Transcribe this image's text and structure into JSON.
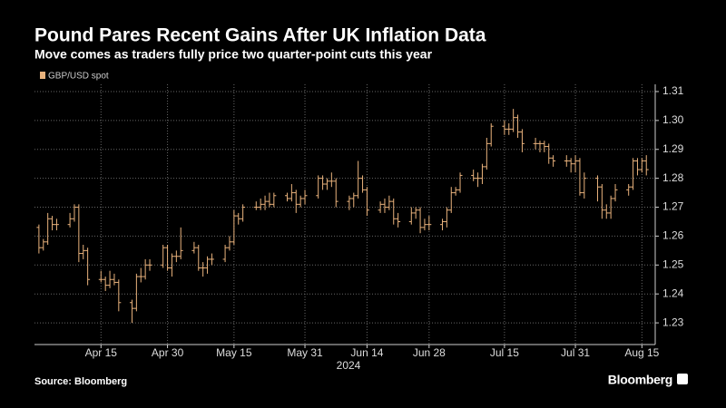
{
  "chart_data": {
    "type": "ohlc",
    "title": "Pound Pares Recent Gains After UK Inflation Data",
    "subtitle": "Move comes as traders fully price two quarter-point cuts this year",
    "source": "Source: Bloomberg",
    "brand": "Bloomberg",
    "xlabel": "2024",
    "grid": true,
    "xlim": [
      "2024-03-31",
      "2024-08-18"
    ],
    "xticks": [
      {
        "value": "2024-04-15",
        "label": "Apr 15"
      },
      {
        "value": "2024-04-30",
        "label": "Apr 30"
      },
      {
        "value": "2024-05-15",
        "label": "May 15"
      },
      {
        "value": "2024-05-31",
        "label": "May 31"
      },
      {
        "value": "2024-06-14",
        "label": "Jun 14"
      },
      {
        "value": "2024-06-28",
        "label": "Jun 28"
      },
      {
        "value": "2024-07-15",
        "label": "Jul 15"
      },
      {
        "value": "2024-07-31",
        "label": "Jul 31"
      },
      {
        "value": "2024-08-15",
        "label": "Aug 15"
      }
    ],
    "ylim": [
      1.2225,
      1.3125
    ],
    "yticks": [
      1.23,
      1.24,
      1.25,
      1.26,
      1.27,
      1.28,
      1.29,
      {
        "value": 1.3,
        "label": "1.30"
      },
      1.31
    ],
    "x": [
      "2024-04-01",
      "2024-04-02",
      "2024-04-03",
      "2024-04-04",
      "2024-04-05",
      "2024-04-08",
      "2024-04-09",
      "2024-04-10",
      "2024-04-11",
      "2024-04-12",
      "2024-04-15",
      "2024-04-16",
      "2024-04-17",
      "2024-04-18",
      "2024-04-19",
      "2024-04-22",
      "2024-04-23",
      "2024-04-24",
      "2024-04-25",
      "2024-04-26",
      "2024-04-29",
      "2024-04-30",
      "2024-05-01",
      "2024-05-02",
      "2024-05-03",
      "2024-05-06",
      "2024-05-07",
      "2024-05-08",
      "2024-05-09",
      "2024-05-10",
      "2024-05-13",
      "2024-05-14",
      "2024-05-15",
      "2024-05-16",
      "2024-05-17",
      "2024-05-20",
      "2024-05-21",
      "2024-05-22",
      "2024-05-23",
      "2024-05-24",
      "2024-05-27",
      "2024-05-28",
      "2024-05-29",
      "2024-05-30",
      "2024-05-31",
      "2024-06-03",
      "2024-06-04",
      "2024-06-05",
      "2024-06-06",
      "2024-06-07",
      "2024-06-10",
      "2024-06-11",
      "2024-06-12",
      "2024-06-13",
      "2024-06-14",
      "2024-06-17",
      "2024-06-18",
      "2024-06-19",
      "2024-06-20",
      "2024-06-21",
      "2024-06-24",
      "2024-06-25",
      "2024-06-26",
      "2024-06-27",
      "2024-06-28",
      "2024-07-01",
      "2024-07-02",
      "2024-07-03",
      "2024-07-04",
      "2024-07-05",
      "2024-07-08",
      "2024-07-09",
      "2024-07-10",
      "2024-07-11",
      "2024-07-12",
      "2024-07-15",
      "2024-07-16",
      "2024-07-17",
      "2024-07-18",
      "2024-07-19",
      "2024-07-22",
      "2024-07-23",
      "2024-07-24",
      "2024-07-25",
      "2024-07-26",
      "2024-07-29",
      "2024-07-30",
      "2024-07-31",
      "2024-08-01",
      "2024-08-02",
      "2024-08-05",
      "2024-08-06",
      "2024-08-07",
      "2024-08-08",
      "2024-08-09",
      "2024-08-12",
      "2024-08-13",
      "2024-08-14",
      "2024-08-15",
      "2024-08-16"
    ],
    "series": [
      {
        "name": "GBP/USD spot",
        "color": "#e9b27c",
        "ohlc": [
          [
            1.263,
            1.264,
            1.254,
            1.256
          ],
          [
            1.256,
            1.259,
            1.255,
            1.258
          ],
          [
            1.258,
            1.268,
            1.257,
            1.266
          ],
          [
            1.266,
            1.267,
            1.262,
            1.264
          ],
          [
            1.264,
            1.266,
            1.262,
            1.264
          ],
          [
            1.264,
            1.268,
            1.263,
            1.266
          ],
          [
            1.266,
            1.271,
            1.265,
            1.27
          ],
          [
            1.27,
            1.271,
            1.251,
            1.254
          ],
          [
            1.254,
            1.257,
            1.252,
            1.255
          ],
          [
            1.255,
            1.256,
            1.243,
            1.245
          ],
          [
            1.245,
            1.248,
            1.244,
            1.245
          ],
          [
            1.245,
            1.246,
            1.241,
            1.243
          ],
          [
            1.243,
            1.248,
            1.242,
            1.245
          ],
          [
            1.245,
            1.247,
            1.243,
            1.244
          ],
          [
            1.244,
            1.245,
            1.234,
            1.237
          ],
          [
            1.237,
            1.238,
            1.23,
            1.235
          ],
          [
            1.235,
            1.247,
            1.234,
            1.246
          ],
          [
            1.246,
            1.249,
            1.244,
            1.246
          ],
          [
            1.246,
            1.252,
            1.245,
            1.25
          ],
          [
            1.25,
            1.252,
            1.248,
            1.25
          ],
          [
            1.25,
            1.257,
            1.249,
            1.256
          ],
          [
            1.256,
            1.257,
            1.248,
            1.249
          ],
          [
            1.249,
            1.254,
            1.246,
            1.253
          ],
          [
            1.253,
            1.255,
            1.251,
            1.253
          ],
          [
            1.253,
            1.263,
            1.252,
            1.255
          ],
          [
            1.255,
            1.258,
            1.254,
            1.256
          ],
          [
            1.256,
            1.257,
            1.248,
            1.249
          ],
          [
            1.249,
            1.251,
            1.246,
            1.249
          ],
          [
            1.249,
            1.253,
            1.247,
            1.252
          ],
          [
            1.252,
            1.254,
            1.25,
            1.252
          ],
          [
            1.252,
            1.257,
            1.251,
            1.256
          ],
          [
            1.256,
            1.26,
            1.255,
            1.258
          ],
          [
            1.258,
            1.269,
            1.257,
            1.267
          ],
          [
            1.267,
            1.268,
            1.264,
            1.266
          ],
          [
            1.266,
            1.271,
            1.265,
            1.27
          ],
          [
            1.27,
            1.272,
            1.269,
            1.27
          ],
          [
            1.27,
            1.273,
            1.269,
            1.271
          ],
          [
            1.271,
            1.274,
            1.269,
            1.272
          ],
          [
            1.272,
            1.275,
            1.27,
            1.271
          ],
          [
            1.271,
            1.275,
            1.27,
            1.274
          ],
          [
            1.274,
            1.275,
            1.272,
            1.273
          ],
          [
            1.273,
            1.278,
            1.272,
            1.275
          ],
          [
            1.275,
            1.276,
            1.268,
            1.271
          ],
          [
            1.271,
            1.274,
            1.27,
            1.273
          ],
          [
            1.273,
            1.276,
            1.271,
            1.274
          ],
          [
            1.274,
            1.281,
            1.273,
            1.28
          ],
          [
            1.28,
            1.281,
            1.276,
            1.278
          ],
          [
            1.278,
            1.28,
            1.276,
            1.279
          ],
          [
            1.279,
            1.282,
            1.277,
            1.279
          ],
          [
            1.279,
            1.28,
            1.27,
            1.272
          ],
          [
            1.272,
            1.274,
            1.269,
            1.273
          ],
          [
            1.273,
            1.275,
            1.27,
            1.274
          ],
          [
            1.274,
            1.286,
            1.273,
            1.28
          ],
          [
            1.28,
            1.281,
            1.275,
            1.276
          ],
          [
            1.276,
            1.277,
            1.267,
            1.269
          ],
          [
            1.269,
            1.272,
            1.268,
            1.271
          ],
          [
            1.271,
            1.273,
            1.268,
            1.27
          ],
          [
            1.27,
            1.274,
            1.269,
            1.272
          ],
          [
            1.272,
            1.273,
            1.264,
            1.266
          ],
          [
            1.266,
            1.268,
            1.263,
            1.265
          ],
          [
            1.265,
            1.27,
            1.264,
            1.268
          ],
          [
            1.268,
            1.27,
            1.266,
            1.269
          ],
          [
            1.269,
            1.27,
            1.261,
            1.263
          ],
          [
            1.263,
            1.266,
            1.262,
            1.264
          ],
          [
            1.264,
            1.267,
            1.262,
            1.264
          ],
          [
            1.264,
            1.266,
            1.262,
            1.265
          ],
          [
            1.265,
            1.27,
            1.263,
            1.269
          ],
          [
            1.269,
            1.277,
            1.268,
            1.275
          ],
          [
            1.275,
            1.277,
            1.274,
            1.276
          ],
          [
            1.276,
            1.282,
            1.275,
            1.281
          ],
          [
            1.281,
            1.283,
            1.279,
            1.28
          ],
          [
            1.28,
            1.282,
            1.277,
            1.28
          ],
          [
            1.28,
            1.285,
            1.278,
            1.284
          ],
          [
            1.284,
            1.294,
            1.283,
            1.292
          ],
          [
            1.292,
            1.299,
            1.291,
            1.298
          ],
          [
            1.298,
            1.3,
            1.295,
            1.297
          ],
          [
            1.297,
            1.299,
            1.295,
            1.297
          ],
          [
            1.297,
            1.304,
            1.296,
            1.301
          ],
          [
            1.301,
            1.302,
            1.294,
            1.296
          ],
          [
            1.296,
            1.297,
            1.289,
            1.292
          ],
          [
            1.292,
            1.294,
            1.29,
            1.292
          ],
          [
            1.292,
            1.293,
            1.289,
            1.292
          ],
          [
            1.292,
            1.293,
            1.289,
            1.291
          ],
          [
            1.291,
            1.292,
            1.285,
            1.287
          ],
          [
            1.287,
            1.288,
            1.284,
            1.286
          ],
          [
            1.286,
            1.288,
            1.284,
            1.286
          ],
          [
            1.286,
            1.287,
            1.282,
            1.285
          ],
          [
            1.285,
            1.288,
            1.282,
            1.286
          ],
          [
            1.286,
            1.287,
            1.274,
            1.275
          ],
          [
            1.275,
            1.282,
            1.273,
            1.28
          ],
          [
            1.28,
            1.281,
            1.272,
            1.277
          ],
          [
            1.277,
            1.278,
            1.266,
            1.269
          ],
          [
            1.269,
            1.271,
            1.266,
            1.268
          ],
          [
            1.268,
            1.274,
            1.266,
            1.273
          ],
          [
            1.273,
            1.278,
            1.272,
            1.276
          ],
          [
            1.276,
            1.278,
            1.274,
            1.277
          ],
          [
            1.277,
            1.287,
            1.276,
            1.286
          ],
          [
            1.286,
            1.287,
            1.281,
            1.283
          ],
          [
            1.283,
            1.287,
            1.282,
            1.286
          ],
          [
            1.286,
            1.288,
            1.281,
            1.283
          ]
        ]
      }
    ]
  }
}
